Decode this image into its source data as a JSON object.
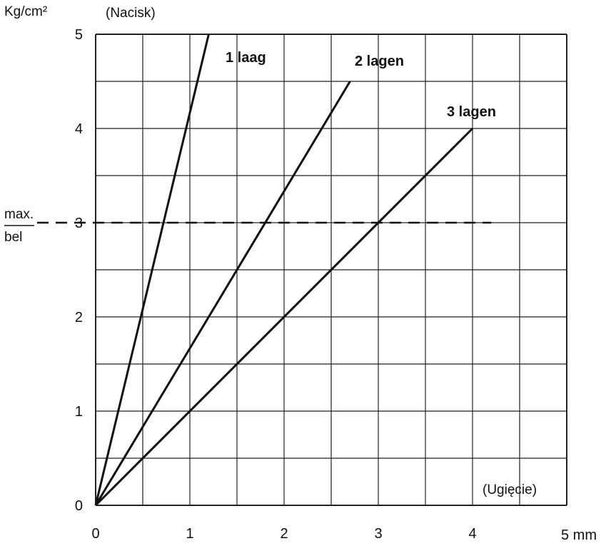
{
  "chart_data": {
    "type": "line",
    "ylabel": "Kg/cm²",
    "ylabel_note": "(Nacisk)",
    "xlabel": "(Ugięcie)",
    "x_unit_label": "5 mm",
    "xlim": [
      0,
      5
    ],
    "ylim": [
      0,
      5
    ],
    "x_ticks": [
      "0",
      "1",
      "2",
      "3",
      "4"
    ],
    "y_ticks": [
      "0",
      "1",
      "2",
      "3",
      "4",
      "5"
    ],
    "grid": true,
    "reference_line": {
      "y": 3,
      "label_line1": "max.",
      "label_line2": "bel",
      "style": "dashed"
    },
    "series": [
      {
        "name": "1 laag",
        "x": [
          0,
          1.2
        ],
        "y": [
          0,
          5.0
        ]
      },
      {
        "name": "2 lagen",
        "x": [
          0,
          2.7
        ],
        "y": [
          0,
          4.5
        ]
      },
      {
        "name": "3 lagen",
        "x": [
          0,
          4.0
        ],
        "y": [
          0,
          4.0
        ]
      }
    ]
  }
}
